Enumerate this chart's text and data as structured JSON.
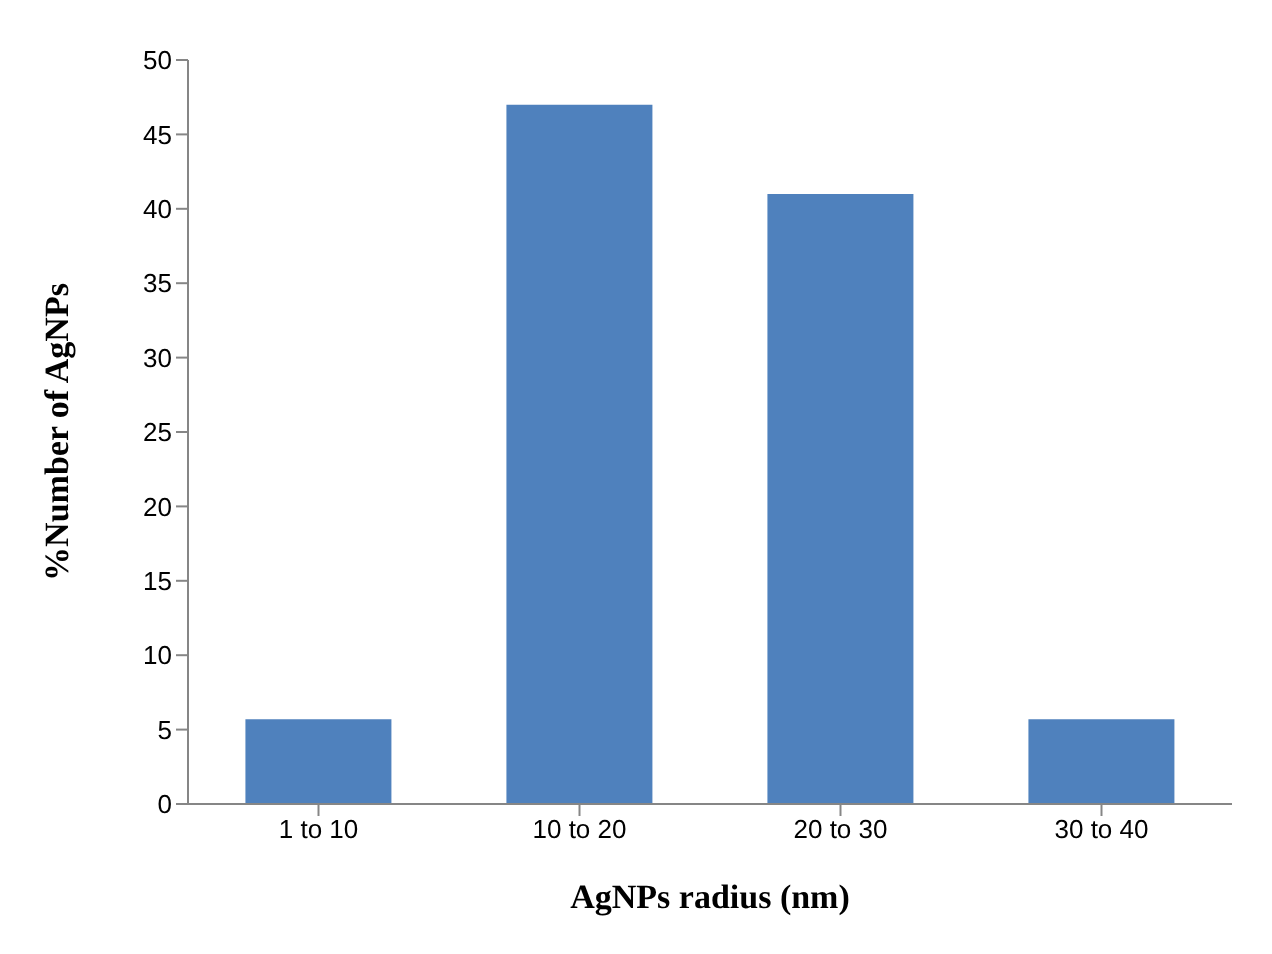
{
  "chart_data": {
    "type": "bar",
    "xlabel": "AgNPs radius (nm)",
    "ylabel": "%Number of AgNPs",
    "categories": [
      "1 to 10",
      "10 to 20",
      "20 to 30",
      "30 to 40"
    ],
    "values": [
      5.7,
      47,
      41,
      5.7
    ],
    "color": "#4f81bd",
    "ylim": [
      0,
      50
    ],
    "yticks": [
      0,
      5,
      10,
      15,
      20,
      25,
      30,
      35,
      40,
      45,
      50
    ],
    "grid": false,
    "legend": false
  }
}
